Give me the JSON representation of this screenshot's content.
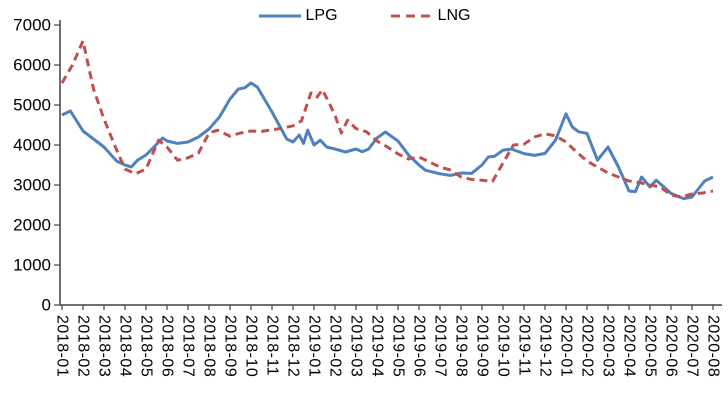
{
  "legend": {
    "items": [
      {
        "label": "LPG",
        "style": "solid"
      },
      {
        "label": "LNG",
        "style": "dashed"
      }
    ]
  },
  "chart_data": {
    "type": "line",
    "title": "",
    "xlabel": "",
    "ylabel": "",
    "legend_position": "top-center",
    "grid": false,
    "ylim": [
      0,
      7000
    ],
    "y_tick_step": 1000,
    "y_tick_labels": [
      "0",
      "1000",
      "2000",
      "3000",
      "4000",
      "5000",
      "6000",
      "7000"
    ],
    "categories": [
      "2018-01",
      "2018-02",
      "2018-03",
      "2018-04",
      "2018-05",
      "2018-06",
      "2018-07",
      "2018-08",
      "2018-09",
      "2018-10",
      "2018-11",
      "2018-12",
      "2019-01",
      "2019-02",
      "2019-03",
      "2019-04",
      "2019-05",
      "2019-06",
      "2019-07",
      "2019-08",
      "2019-09",
      "2019-10",
      "2019-11",
      "2019-12",
      "2020-01",
      "2020-02",
      "2020-03",
      "2020-04",
      "2020-05",
      "2020-06",
      "2020-07",
      "2020-08"
    ],
    "series": [
      {
        "name": "LPG",
        "color": "#4F81BD",
        "dash": "solid",
        "values": [
          4750,
          4350,
          3950,
          3500,
          3750,
          4100,
          4075,
          4400,
          5150,
          5550,
          4825,
          4075,
          4000,
          3900,
          3900,
          4175,
          4100,
          3500,
          3280,
          3300,
          3500,
          3870,
          3785,
          3790,
          4780,
          4290,
          3950,
          2850,
          2950,
          2790,
          2700,
          3200
        ],
        "render_points": [
          [
            0,
            4750
          ],
          [
            0.4,
            4850
          ],
          [
            1,
            4350
          ],
          [
            1.5,
            4150
          ],
          [
            2,
            3950
          ],
          [
            2.6,
            3600
          ],
          [
            3,
            3500
          ],
          [
            3.3,
            3450
          ],
          [
            3.6,
            3620
          ],
          [
            4,
            3750
          ],
          [
            4.8,
            4175
          ],
          [
            5,
            4100
          ],
          [
            5.5,
            4040
          ],
          [
            6,
            4075
          ],
          [
            6.5,
            4200
          ],
          [
            7,
            4400
          ],
          [
            7.5,
            4700
          ],
          [
            8,
            5150
          ],
          [
            8.4,
            5400
          ],
          [
            8.7,
            5430
          ],
          [
            9,
            5550
          ],
          [
            9.3,
            5450
          ],
          [
            10,
            4825
          ],
          [
            10.7,
            4150
          ],
          [
            11,
            4075
          ],
          [
            11.3,
            4250
          ],
          [
            11.5,
            4040
          ],
          [
            11.7,
            4370
          ],
          [
            12,
            4000
          ],
          [
            12.3,
            4120
          ],
          [
            12.6,
            3950
          ],
          [
            13,
            3900
          ],
          [
            13.5,
            3825
          ],
          [
            14,
            3900
          ],
          [
            14.3,
            3830
          ],
          [
            14.6,
            3900
          ],
          [
            15,
            4175
          ],
          [
            15.4,
            4325
          ],
          [
            16,
            4100
          ],
          [
            16.5,
            3750
          ],
          [
            17,
            3500
          ],
          [
            17.3,
            3370
          ],
          [
            18,
            3280
          ],
          [
            18.5,
            3240
          ],
          [
            19,
            3300
          ],
          [
            19.5,
            3290
          ],
          [
            20,
            3500
          ],
          [
            20.3,
            3700
          ],
          [
            20.6,
            3720
          ],
          [
            21,
            3870
          ],
          [
            21.4,
            3900
          ],
          [
            22,
            3785
          ],
          [
            22.5,
            3740
          ],
          [
            23,
            3790
          ],
          [
            23.5,
            4120
          ],
          [
            24,
            4780
          ],
          [
            24.3,
            4450
          ],
          [
            24.6,
            4330
          ],
          [
            25,
            4290
          ],
          [
            25.5,
            3620
          ],
          [
            26,
            3950
          ],
          [
            26.5,
            3450
          ],
          [
            27,
            2850
          ],
          [
            27.3,
            2830
          ],
          [
            27.6,
            3200
          ],
          [
            28,
            2950
          ],
          [
            28.3,
            3120
          ],
          [
            29,
            2790
          ],
          [
            29.6,
            2660
          ],
          [
            30,
            2700
          ],
          [
            30.6,
            3100
          ],
          [
            31,
            3200
          ]
        ]
      },
      {
        "name": "LNG",
        "color": "#C0504D",
        "dash": "dashed",
        "values": [
          5550,
          6600,
          4650,
          3400,
          3400,
          3950,
          3680,
          4300,
          4220,
          4350,
          4380,
          4480,
          5280,
          4740,
          4410,
          4100,
          3775,
          3700,
          3450,
          3200,
          3120,
          3550,
          4020,
          4280,
          4075,
          3600,
          3300,
          3100,
          3000,
          2750,
          2775,
          2850
        ],
        "render_points": [
          [
            0,
            5550
          ],
          [
            0.5,
            6000
          ],
          [
            1,
            6600
          ],
          [
            1.5,
            5400
          ],
          [
            2,
            4650
          ],
          [
            2.5,
            4000
          ],
          [
            3,
            3400
          ],
          [
            3.5,
            3280
          ],
          [
            4,
            3400
          ],
          [
            4.6,
            4120
          ],
          [
            5,
            3950
          ],
          [
            5.5,
            3620
          ],
          [
            6,
            3680
          ],
          [
            6.5,
            3800
          ],
          [
            7,
            4300
          ],
          [
            7.4,
            4370
          ],
          [
            8,
            4220
          ],
          [
            8.5,
            4300
          ],
          [
            9,
            4350
          ],
          [
            9.5,
            4340
          ],
          [
            10,
            4380
          ],
          [
            10.5,
            4420
          ],
          [
            11,
            4480
          ],
          [
            11.4,
            4600
          ],
          [
            11.85,
            5300
          ],
          [
            12,
            5280
          ],
          [
            12.15,
            5200
          ],
          [
            12.4,
            5380
          ],
          [
            12.7,
            5075
          ],
          [
            13,
            4740
          ],
          [
            13.3,
            4300
          ],
          [
            13.6,
            4620
          ],
          [
            14,
            4410
          ],
          [
            14.5,
            4330
          ],
          [
            15,
            4100
          ],
          [
            15.5,
            3950
          ],
          [
            16,
            3775
          ],
          [
            16.5,
            3650
          ],
          [
            17,
            3700
          ],
          [
            17.5,
            3575
          ],
          [
            18,
            3450
          ],
          [
            18.5,
            3375
          ],
          [
            19,
            3200
          ],
          [
            19.5,
            3140
          ],
          [
            20,
            3120
          ],
          [
            20.5,
            3090
          ],
          [
            21,
            3550
          ],
          [
            21.5,
            4000
          ],
          [
            22,
            4020
          ],
          [
            22.5,
            4200
          ],
          [
            23,
            4280
          ],
          [
            23.5,
            4230
          ],
          [
            24,
            4075
          ],
          [
            24.5,
            3825
          ],
          [
            25,
            3600
          ],
          [
            25.5,
            3450
          ],
          [
            26,
            3300
          ],
          [
            26.5,
            3200
          ],
          [
            27,
            3100
          ],
          [
            27.5,
            3060
          ],
          [
            28,
            3000
          ],
          [
            28.5,
            2950
          ],
          [
            29,
            2750
          ],
          [
            29.5,
            2700
          ],
          [
            30,
            2775
          ],
          [
            30.5,
            2800
          ],
          [
            31,
            2850
          ]
        ]
      }
    ]
  }
}
